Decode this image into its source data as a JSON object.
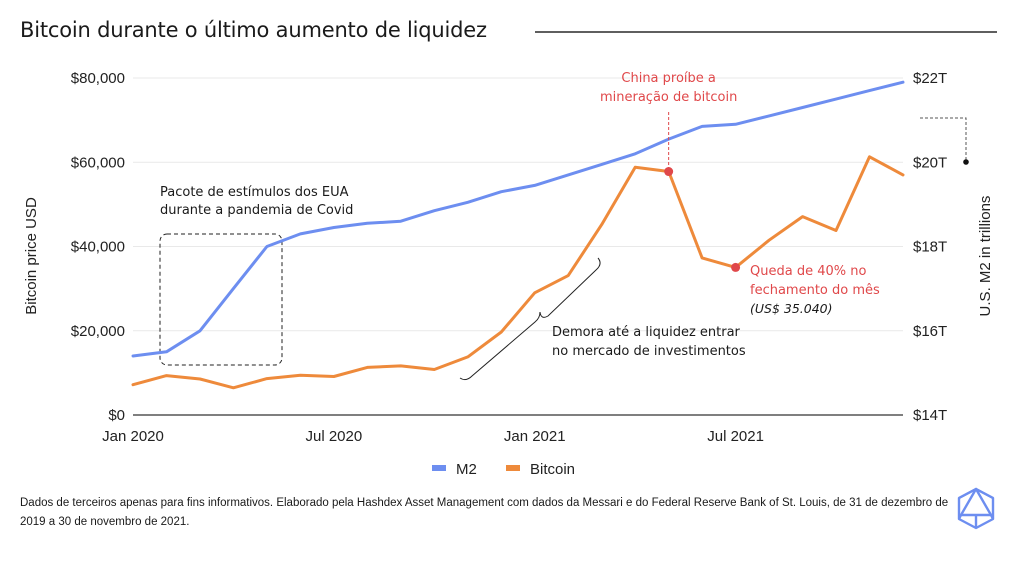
{
  "header": {
    "title": "Bitcoin durante o último aumento de liquidez"
  },
  "chart_data": {
    "type": "line",
    "title": "Bitcoin durante o último aumento de liquidez",
    "x": [
      "Dez 2019",
      "Jan 2020",
      "Fev 2020",
      "Mar 2020",
      "Abr 2020",
      "Mai 2020",
      "Jun 2020",
      "Jul 2020",
      "Ago 2020",
      "Set 2020",
      "Out 2020",
      "Nov 2020",
      "Dez 2020",
      "Jan 2021",
      "Fev 2021",
      "Mar 2021",
      "Abr 2021",
      "Mai 2021",
      "Jun 2021",
      "Jul 2021",
      "Ago 2021",
      "Set 2021",
      "Out 2021",
      "Nov 2021"
    ],
    "x_tick_labels": [
      {
        "index": 0,
        "label": "Jan 2020"
      },
      {
        "index": 6,
        "label": "Jul 2020"
      },
      {
        "index": 12,
        "label": "Jan 2021"
      },
      {
        "index": 18,
        "label": "Jul 2021"
      }
    ],
    "series": [
      {
        "name": "M2",
        "axis": "right",
        "color": "#6d8ef0",
        "values": [
          15.4,
          15.5,
          16.0,
          17.0,
          18.0,
          18.3,
          18.45,
          18.55,
          18.6,
          18.85,
          19.05,
          19.3,
          19.45,
          19.7,
          19.95,
          20.2,
          20.55,
          20.85,
          20.9,
          21.1,
          21.3,
          21.5,
          21.7,
          21.9
        ]
      },
      {
        "name": "Bitcoin",
        "axis": "left",
        "color": "#ee8a3b",
        "values": [
          7200,
          9350,
          8550,
          6450,
          8650,
          9450,
          9150,
          11300,
          11650,
          10800,
          13800,
          19700,
          29000,
          33100,
          45200,
          58800,
          57800,
          37300,
          35040,
          41500,
          47100,
          43800,
          61300,
          57000
        ]
      }
    ],
    "y_left": {
      "label": "Bitcoin price USD",
      "range": [
        0,
        80000
      ],
      "ticks": [
        0,
        20000,
        40000,
        60000,
        80000
      ],
      "tick_labels": [
        "$0",
        "$20,000",
        "$40,000",
        "$60,000",
        "$80,000"
      ]
    },
    "y_right": {
      "label": "U.S. M2 in trillions",
      "range": [
        14,
        22
      ],
      "ticks": [
        14,
        16,
        18,
        20,
        22
      ],
      "tick_labels": [
        "$14T",
        "$16T",
        "$18T",
        "$20T",
        "$22T"
      ]
    },
    "grid": true,
    "legend": {
      "placement": "bottom-center",
      "items": [
        "M2",
        "Bitcoin"
      ]
    },
    "annotations": {
      "stimulus": {
        "lines": [
          "Pacote de estímulos dos EUA",
          "durante a pandemia de Covid"
        ],
        "box_index_range": [
          1,
          5
        ]
      },
      "delay": {
        "lines": [
          "Demora até a liquidez entrar",
          "no mercado de investimentos"
        ]
      },
      "china": {
        "lines": [
          "China proíbe a",
          "mineração de bitcoin"
        ],
        "point_index": 16,
        "color": "#e0484a"
      },
      "drop": {
        "lines": [
          "Queda de 40% no",
          "fechamento do mês"
        ],
        "value_note": "(US$ 35.040)",
        "point_index": 18,
        "color": "#e0484a"
      }
    }
  },
  "footnote": {
    "text": "Dados de terceiros apenas para fins informativos. Elaborado pela Hashdex Asset Management com dados da Messari e do Federal Reserve Bank of St. Louis, de 31 de dezembro de 2019 a 30 de novembro de 2021."
  },
  "logo": {
    "icon": "hashdex-logo-icon",
    "color": "#6d8ef0"
  }
}
